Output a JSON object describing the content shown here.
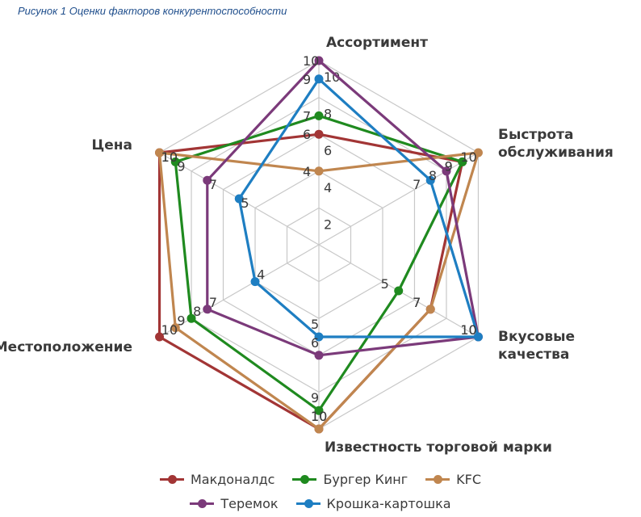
{
  "caption": "Рисунок 1 Оценки факторов конкурентоспособности",
  "chart_data": {
    "type": "radar",
    "axes": [
      "Ассортимент",
      "Быстрота обслуживания",
      "Вкусовые качества",
      "Известность торговой марки",
      "Местоположение",
      "Цена"
    ],
    "axis_label_lines": [
      [
        "Ассортимент"
      ],
      [
        "Быстрота",
        "обслуживания"
      ],
      [
        "Вкусовые",
        "качества"
      ],
      [
        "Известность торговой марки"
      ],
      [
        "Местоположение"
      ],
      [
        "Цена"
      ]
    ],
    "r_range": [
      0,
      10
    ],
    "grid_levels": 5,
    "series": [
      {
        "name": "Макдоналдс",
        "color": "#a23535",
        "values": [
          6,
          9,
          7,
          10,
          10,
          10
        ],
        "labels": [
          "6",
          "9",
          "7",
          "10",
          "10",
          "10"
        ]
      },
      {
        "name": "Бургер Кинг",
        "color": "#1f8a1f",
        "values": [
          7,
          9,
          5,
          9,
          8,
          9
        ],
        "labels": [
          "7",
          "9",
          "5",
          "9",
          "8",
          "9"
        ]
      },
      {
        "name": "KFC",
        "color": "#c0864f",
        "values": [
          4,
          10,
          7,
          10,
          9,
          10
        ],
        "labels": [
          "4",
          "10",
          "7",
          "10",
          "9",
          "10"
        ]
      },
      {
        "name": "Теремок",
        "color": "#7b3a7a",
        "values": [
          10,
          8,
          10,
          6,
          7,
          7
        ],
        "labels": [
          "10",
          "8",
          "10",
          "6",
          "7",
          "7"
        ]
      },
      {
        "name": "Крошка-картошка",
        "color": "#1e7ec2",
        "values": [
          9,
          7,
          10,
          5,
          4,
          5
        ],
        "labels": [
          "9",
          "7",
          "10",
          "5",
          "4",
          "5"
        ]
      }
    ],
    "scale_labels": [
      "2",
      "4",
      "6",
      "8",
      "10"
    ],
    "legend_position": "bottom"
  }
}
